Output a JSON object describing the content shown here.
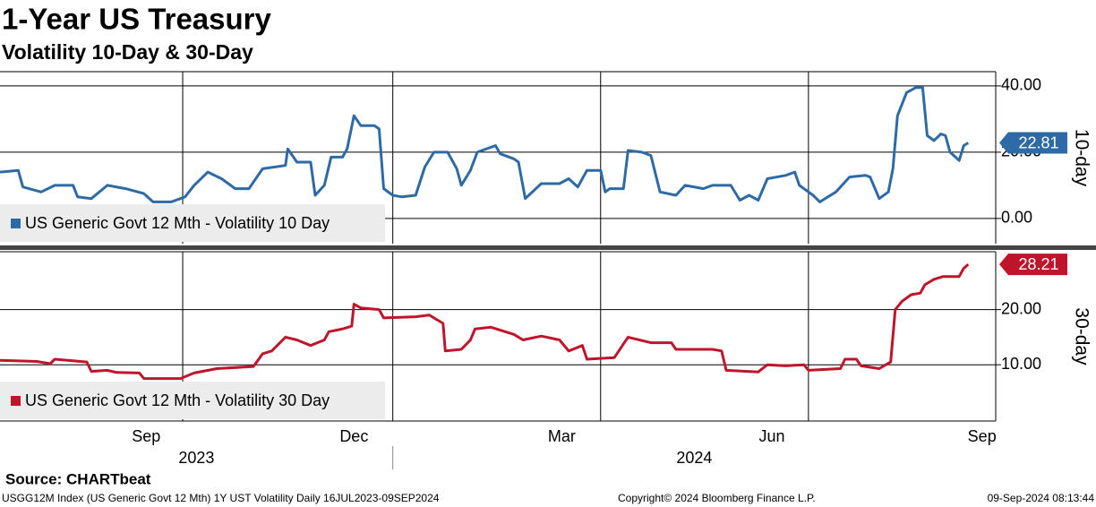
{
  "title": "1-Year US Treasury",
  "subtitle": "Volatility 10-Day & 30-Day",
  "source": "Source: CHARTbeat",
  "footer": {
    "left": "USGG12M Index (US Generic Govt 12 Mth) 1Y UST Volatility  Daily 16JUL2023-09SEP2024",
    "center": "Copyright© 2024 Bloomberg Finance L.P.",
    "right": "09-Sep-2024 08:13:44"
  },
  "chart_data": [
    {
      "type": "line",
      "ylabel": "10-day",
      "xlim": [
        "2023-07-13",
        "2024-09-21"
      ],
      "xgrid": [
        "2023-10-01",
        "2024-01-01",
        "2024-04-01",
        "2024-07-01"
      ],
      "ylim": [
        -7.6,
        44.3
      ],
      "yticks": [
        {
          "value": 0,
          "label": "0.00"
        },
        {
          "value": 20,
          "label": "20.00"
        },
        {
          "value": 40,
          "label": "40.00"
        }
      ],
      "grid": true,
      "x": [
        "2023-07-13",
        "2023-07-21",
        "2023-07-23",
        "2023-07-31",
        "2023-08-06",
        "2023-08-14",
        "2023-08-16",
        "2023-08-22",
        "2023-08-29",
        "2023-09-06",
        "2023-09-14",
        "2023-09-18",
        "2023-09-26",
        "2023-10-02",
        "2023-10-06",
        "2023-10-12",
        "2023-10-18",
        "2023-10-24",
        "2023-10-30",
        "2023-11-05",
        "2023-11-15",
        "2023-11-16",
        "2023-11-20",
        "2023-11-26",
        "2023-11-28",
        "2023-12-02",
        "2023-12-05",
        "2023-12-10",
        "2023-12-12",
        "2023-12-15",
        "2023-12-18",
        "2023-12-24",
        "2023-12-26",
        "2023-12-28",
        "2024-01-01",
        "2024-01-05",
        "2024-01-11",
        "2024-01-15",
        "2024-01-19",
        "2024-01-25",
        "2024-01-29",
        "2024-01-31",
        "2024-02-04",
        "2024-02-07",
        "2024-02-15",
        "2024-02-17",
        "2024-02-23",
        "2024-02-25",
        "2024-02-28",
        "2024-03-06",
        "2024-03-14",
        "2024-03-18",
        "2024-03-22",
        "2024-03-26",
        "2024-04-01",
        "2024-04-03",
        "2024-04-05",
        "2024-04-11",
        "2024-04-13",
        "2024-04-19",
        "2024-04-23",
        "2024-04-27",
        "2024-05-04",
        "2024-05-08",
        "2024-05-16",
        "2024-05-20",
        "2024-05-24",
        "2024-05-28",
        "2024-06-01",
        "2024-06-05",
        "2024-06-09",
        "2024-06-13",
        "2024-06-21",
        "2024-06-25",
        "2024-06-27",
        "2024-07-03",
        "2024-07-06",
        "2024-07-13",
        "2024-07-19",
        "2024-07-26",
        "2024-07-28",
        "2024-08-01",
        "2024-08-05",
        "2024-08-07",
        "2024-08-09",
        "2024-08-13",
        "2024-08-17",
        "2024-08-20",
        "2024-08-22",
        "2024-08-25",
        "2024-08-28",
        "2024-08-30",
        "2024-09-01",
        "2024-09-05",
        "2024-09-07",
        "2024-09-09"
      ],
      "series": [
        {
          "name": "US Generic Govt 12 Mth - Volatility 10 Day",
          "color": "#2e6aa6",
          "values": [
            14,
            14.5,
            9.5,
            8,
            10,
            10,
            6.5,
            6,
            10,
            9,
            7.5,
            5,
            5,
            6.5,
            10,
            14,
            12,
            9,
            9,
            15,
            16,
            21,
            17,
            17,
            7,
            10,
            18.5,
            18.5,
            21,
            31,
            28,
            28,
            27,
            9,
            7,
            6.5,
            7,
            15.5,
            20,
            20,
            15,
            10,
            14.5,
            20,
            22,
            19.5,
            18,
            17,
            6,
            10.5,
            10.5,
            12,
            9.5,
            14.5,
            14.5,
            8,
            9,
            9,
            20.5,
            20,
            19,
            8,
            7,
            10,
            9,
            10,
            10,
            10,
            5.5,
            7,
            5.5,
            12,
            13,
            14,
            10,
            7,
            5,
            8,
            12.5,
            13,
            12.5,
            6,
            8,
            15,
            31,
            38,
            39.5,
            39.5,
            25,
            23.5,
            25.5,
            25,
            20,
            17.5,
            22,
            22.81
          ]
        }
      ]
    },
    {
      "type": "line",
      "ylabel": "30-day",
      "xlim": [
        "2023-07-13",
        "2024-09-21"
      ],
      "xgrid": [
        "2023-10-01",
        "2024-01-01",
        "2024-04-01",
        "2024-07-01"
      ],
      "xticks": [
        {
          "value": "2023-09-15",
          "label": "Sep"
        },
        {
          "value": "2023-12-15",
          "label": "Dec"
        },
        {
          "value": "2024-03-15",
          "label": "Mar"
        },
        {
          "value": "2024-06-15",
          "label": "Jun"
        },
        {
          "value": "2024-09-15",
          "label": "Sep"
        }
      ],
      "years": [
        "2023",
        "2024"
      ],
      "ylim": [
        -0.2,
        30.5
      ],
      "yticks": [
        {
          "value": 10,
          "label": "10.00"
        },
        {
          "value": 20,
          "label": "20.00"
        }
      ],
      "grid": true,
      "x": [
        "2023-07-13",
        "2023-07-29",
        "2023-08-04",
        "2023-08-06",
        "2023-08-20",
        "2023-08-22",
        "2023-08-29",
        "2023-09-02",
        "2023-09-12",
        "2023-09-14",
        "2023-09-30",
        "2023-10-06",
        "2023-10-16",
        "2023-11-01",
        "2023-11-05",
        "2023-11-09",
        "2023-11-15",
        "2023-11-20",
        "2023-11-26",
        "2023-12-02",
        "2023-12-04",
        "2023-12-10",
        "2023-12-14",
        "2023-12-15",
        "2023-12-18",
        "2023-12-26",
        "2023-12-28",
        "2024-01-11",
        "2024-01-17",
        "2024-01-23",
        "2024-01-24",
        "2024-01-31",
        "2024-02-04",
        "2024-02-06",
        "2024-02-13",
        "2024-02-23",
        "2024-02-27",
        "2024-03-06",
        "2024-03-14",
        "2024-03-18",
        "2024-03-24",
        "2024-03-26",
        "2024-04-07",
        "2024-04-13",
        "2024-04-23",
        "2024-05-02",
        "2024-05-04",
        "2024-05-20",
        "2024-05-24",
        "2024-05-26",
        "2024-06-09",
        "2024-06-13",
        "2024-06-21",
        "2024-06-29",
        "2024-07-01",
        "2024-07-15",
        "2024-07-17",
        "2024-07-22",
        "2024-07-24",
        "2024-08-01",
        "2024-08-06",
        "2024-08-08",
        "2024-08-11",
        "2024-08-15",
        "2024-08-19",
        "2024-08-21",
        "2024-08-25",
        "2024-08-29",
        "2024-09-05",
        "2024-09-07",
        "2024-09-09"
      ],
      "series": [
        {
          "name": "US Generic Govt 12 Mth - Volatility 30 Day",
          "color": "#c0142c",
          "values": [
            10.8,
            10.6,
            10.2,
            11,
            10.5,
            8.8,
            9,
            8.6,
            8.5,
            7.5,
            7.5,
            8.5,
            9.3,
            9.7,
            12,
            12.5,
            15,
            14.5,
            13.5,
            14.5,
            16,
            16.5,
            17,
            21,
            20.3,
            20,
            18.5,
            18.7,
            19,
            17.5,
            12.5,
            12.8,
            14.5,
            16.5,
            16.8,
            15.5,
            14.5,
            15.2,
            14.5,
            12.5,
            13.5,
            11,
            11.3,
            15,
            14,
            14,
            12.8,
            12.8,
            12.5,
            9,
            8.7,
            10,
            9.8,
            10,
            9,
            9.3,
            11,
            11,
            9.8,
            9.3,
            10.5,
            20,
            21.5,
            22.7,
            23,
            24.5,
            25.5,
            26,
            26,
            27.5,
            28.21
          ]
        }
      ]
    }
  ]
}
